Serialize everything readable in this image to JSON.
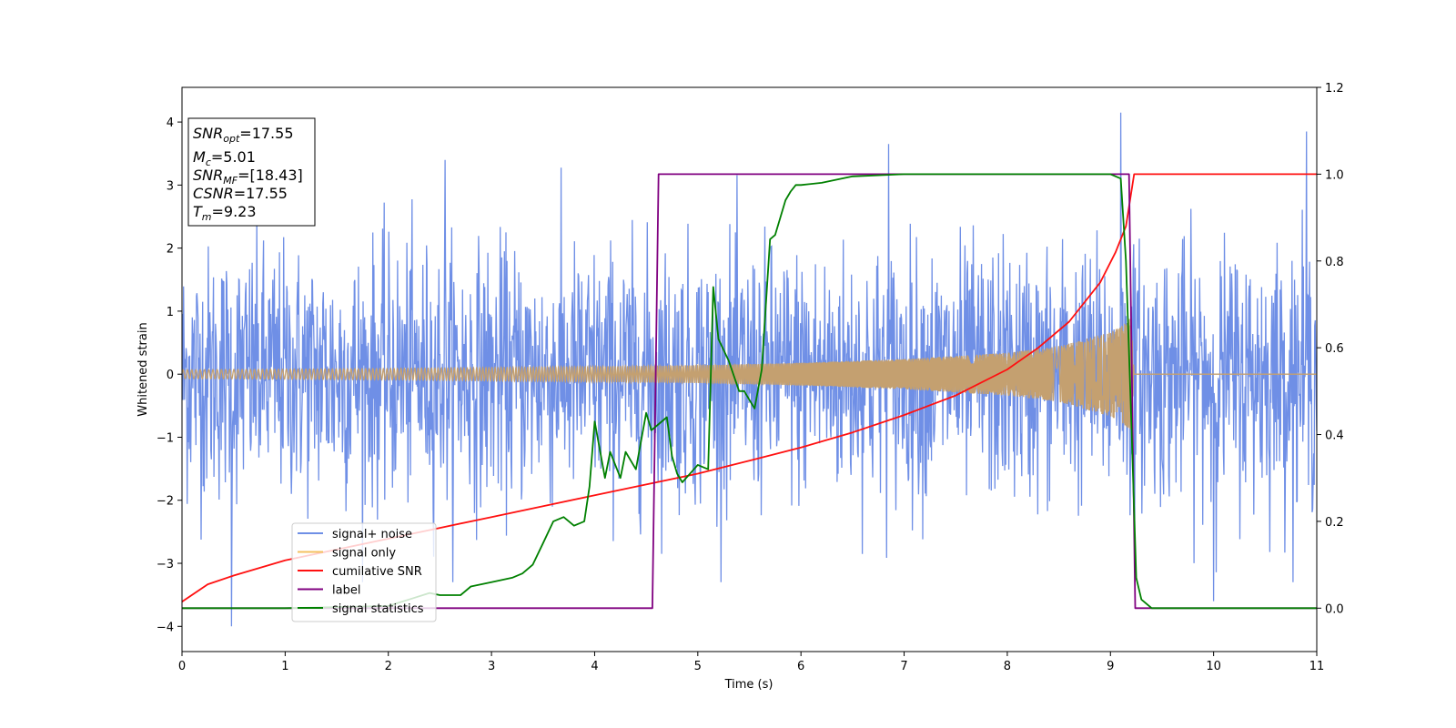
{
  "chart_data": {
    "type": "line",
    "xlabel": "Time (s)",
    "ylabel": "Whitened strain",
    "xlim": [
      0,
      11
    ],
    "ylim_left": [
      -4.4,
      4.55
    ],
    "ylim_right": [
      -0.1,
      1.2
    ],
    "x_ticks": [
      "0",
      "1",
      "2",
      "3",
      "4",
      "5",
      "6",
      "7",
      "8",
      "9",
      "10",
      "11"
    ],
    "y_ticks_left": [
      "4",
      "3",
      "2",
      "1",
      "0",
      "−1",
      "−2",
      "−3",
      "−4"
    ],
    "y_ticks_right": [
      "1.2",
      "1.0",
      "0.8",
      "0.6",
      "0.4",
      "0.2",
      "0.0"
    ],
    "grid": false,
    "legend_position": "lower-left",
    "info_box": {
      "snr_opt": {
        "sym": "SNR",
        "sub": "opt",
        "val": "=17.55"
      },
      "mc": {
        "sym": "M",
        "sub": "c",
        "val": "=5.01"
      },
      "snr_mf": {
        "sym": "SNR",
        "sub": "MF",
        "val": "=[18.43]"
      },
      "csnr": {
        "sym": "CSNR",
        "sub": "",
        "val": "=17.55"
      },
      "tm": {
        "sym": "T",
        "sub": "m",
        "val": "=9.23"
      }
    },
    "series": [
      {
        "name": "signal+ noise",
        "color": "#6f8fe6",
        "axis": "left",
        "description_points": {
          "noise_sigma": 1.0,
          "x_range": [
            0,
            11
          ],
          "samples": 2200,
          "notable_spikes": [
            [
              0.48,
              -4.0
            ],
            [
              9.1,
              4.15
            ],
            [
              10.9,
              3.85
            ],
            [
              6.85,
              3.65
            ],
            [
              2.55,
              3.4
            ],
            [
              10.0,
              -3.6
            ]
          ]
        }
      },
      {
        "name": "signal only",
        "color": "#f5c060",
        "axis": "left",
        "envelope": {
          "x": [
            0,
            2,
            4,
            5,
            6,
            7,
            8,
            8.5,
            9,
            9.1,
            9.2,
            9.23
          ],
          "amp": [
            0.07,
            0.09,
            0.12,
            0.14,
            0.18,
            0.24,
            0.34,
            0.44,
            0.67,
            0.75,
            0.9,
            0.0
          ]
        }
      },
      {
        "name": "cumilative SNR",
        "color": "#ff1010",
        "axis": "right",
        "x": [
          0,
          0.25,
          0.5,
          1,
          1.5,
          2,
          2.5,
          3,
          3.5,
          4,
          4.5,
          5,
          5.5,
          6,
          6.5,
          7,
          7.5,
          8,
          8.3,
          8.6,
          8.9,
          9.05,
          9.15,
          9.23,
          11
        ],
        "y": [
          0.015,
          0.055,
          0.075,
          0.11,
          0.135,
          0.16,
          0.185,
          0.21,
          0.235,
          0.26,
          0.285,
          0.31,
          0.34,
          0.37,
          0.405,
          0.445,
          0.49,
          0.55,
          0.6,
          0.66,
          0.75,
          0.82,
          0.88,
          1.0,
          1.0
        ]
      },
      {
        "name": "label",
        "color": "#800080",
        "axis": "right",
        "x": [
          0,
          4.56,
          4.62,
          9.18,
          9.24,
          11
        ],
        "y": [
          0.0,
          0.0,
          1.0,
          1.0,
          0.0,
          0.0
        ]
      },
      {
        "name": "signal statistics",
        "color": "#008000",
        "axis": "right",
        "x": [
          0,
          1,
          2,
          2.2,
          2.4,
          2.5,
          2.7,
          2.8,
          3.0,
          3.2,
          3.3,
          3.4,
          3.5,
          3.6,
          3.7,
          3.8,
          3.9,
          3.95,
          4.0,
          4.1,
          4.15,
          4.25,
          4.3,
          4.4,
          4.5,
          4.55,
          4.6,
          4.7,
          4.75,
          4.8,
          4.85,
          5.0,
          5.1,
          5.15,
          5.2,
          5.3,
          5.4,
          5.45,
          5.55,
          5.62,
          5.7,
          5.75,
          5.8,
          5.85,
          5.9,
          5.95,
          6.0,
          6.2,
          6.5,
          7,
          8,
          8.5,
          9.0,
          9.1,
          9.15,
          9.2,
          9.25,
          9.3,
          9.4,
          10,
          11
        ],
        "y": [
          0.0,
          0.0,
          0.005,
          0.02,
          0.035,
          0.03,
          0.03,
          0.05,
          0.06,
          0.07,
          0.08,
          0.1,
          0.15,
          0.2,
          0.21,
          0.19,
          0.2,
          0.28,
          0.43,
          0.3,
          0.36,
          0.3,
          0.36,
          0.32,
          0.45,
          0.41,
          0.42,
          0.44,
          0.35,
          0.31,
          0.29,
          0.33,
          0.32,
          0.74,
          0.62,
          0.57,
          0.5,
          0.5,
          0.46,
          0.55,
          0.85,
          0.86,
          0.9,
          0.94,
          0.96,
          0.975,
          0.975,
          0.98,
          0.995,
          1.0,
          1.0,
          1.0,
          1.0,
          0.99,
          0.8,
          0.45,
          0.07,
          0.02,
          0.0,
          0.0,
          0.0
        ]
      }
    ]
  }
}
